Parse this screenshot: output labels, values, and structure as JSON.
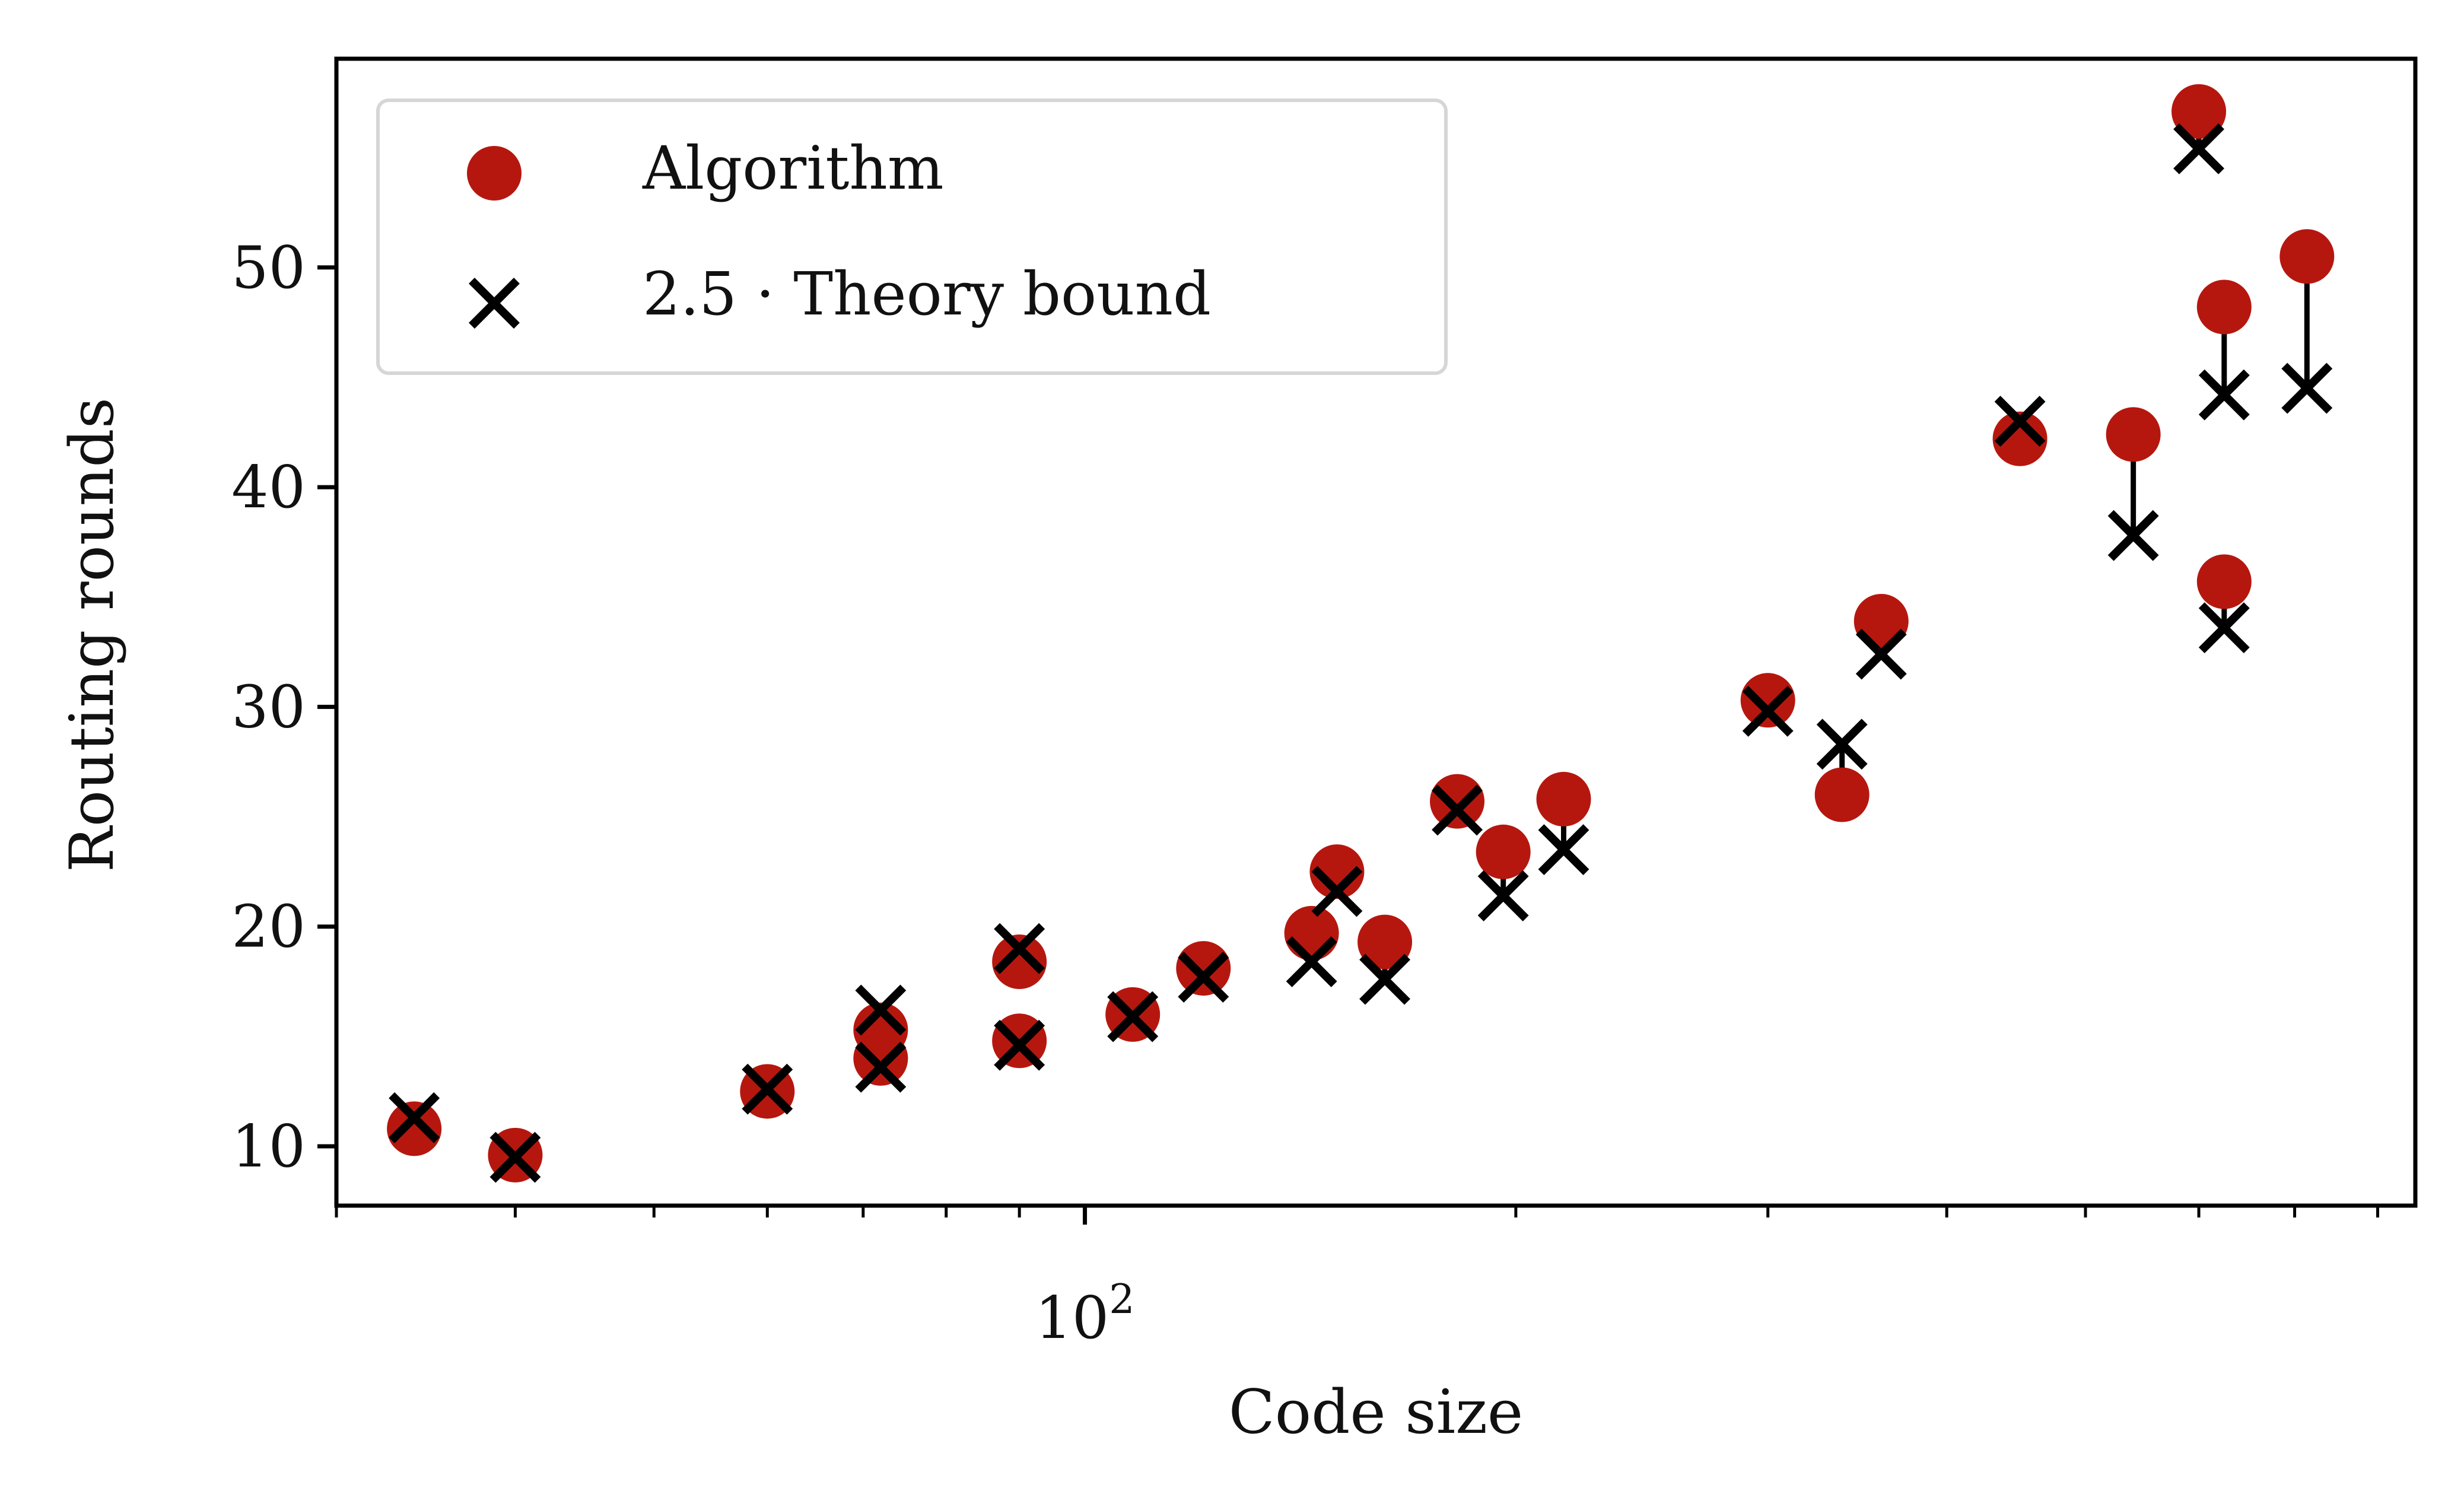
{
  "chart_data": {
    "type": "scatter",
    "xlabel": "Code size",
    "ylabel": "Routing rounds",
    "xscale": "log",
    "xlim": [
      30,
      850
    ],
    "ylim": [
      7.3,
      59.5
    ],
    "grid": false,
    "legend_position": "top-left",
    "x_tick_labels": [
      {
        "value": 100,
        "base": "10",
        "exponent": "2"
      }
    ],
    "y_ticks": [
      10,
      20,
      30,
      40,
      50
    ],
    "colors": {
      "algorithm": "#b5170f",
      "theory": "#000000",
      "connector": "#000000"
    },
    "series": [
      {
        "name": "Algorithm",
        "marker": "circle",
        "points": [
          [
            34,
            10.8
          ],
          [
            40,
            9.6
          ],
          [
            60,
            12.5
          ],
          [
            72,
            15.3
          ],
          [
            72,
            14.0
          ],
          [
            90,
            18.4
          ],
          [
            90,
            14.8
          ],
          [
            108,
            16.0
          ],
          [
            121,
            18.1
          ],
          [
            144,
            19.7
          ],
          [
            150,
            22.5
          ],
          [
            162,
            19.3
          ],
          [
            182,
            25.7
          ],
          [
            196,
            23.4
          ],
          [
            216,
            25.8
          ],
          [
            300,
            30.3
          ],
          [
            338,
            26.0
          ],
          [
            360,
            33.9
          ],
          [
            450,
            42.2
          ],
          [
            540,
            42.4
          ],
          [
            600,
            57.1
          ],
          [
            625,
            48.2
          ],
          [
            625,
            35.7
          ],
          [
            714,
            50.5
          ]
        ]
      },
      {
        "name": "2.5 · Theory bound",
        "marker": "x",
        "points": [
          [
            34,
            11.3
          ],
          [
            40,
            9.5
          ],
          [
            60,
            12.6
          ],
          [
            72,
            16.2
          ],
          [
            72,
            13.6
          ],
          [
            90,
            19.0
          ],
          [
            90,
            14.6
          ],
          [
            108,
            15.9
          ],
          [
            121,
            17.7
          ],
          [
            144,
            18.4
          ],
          [
            150,
            21.6
          ],
          [
            162,
            17.6
          ],
          [
            182,
            25.3
          ],
          [
            196,
            21.4
          ],
          [
            216,
            23.5
          ],
          [
            300,
            29.8
          ],
          [
            338,
            28.3
          ],
          [
            360,
            32.4
          ],
          [
            450,
            43.0
          ],
          [
            540,
            37.8
          ],
          [
            600,
            55.4
          ],
          [
            625,
            44.2
          ],
          [
            625,
            33.6
          ],
          [
            714,
            44.5
          ]
        ]
      }
    ]
  }
}
